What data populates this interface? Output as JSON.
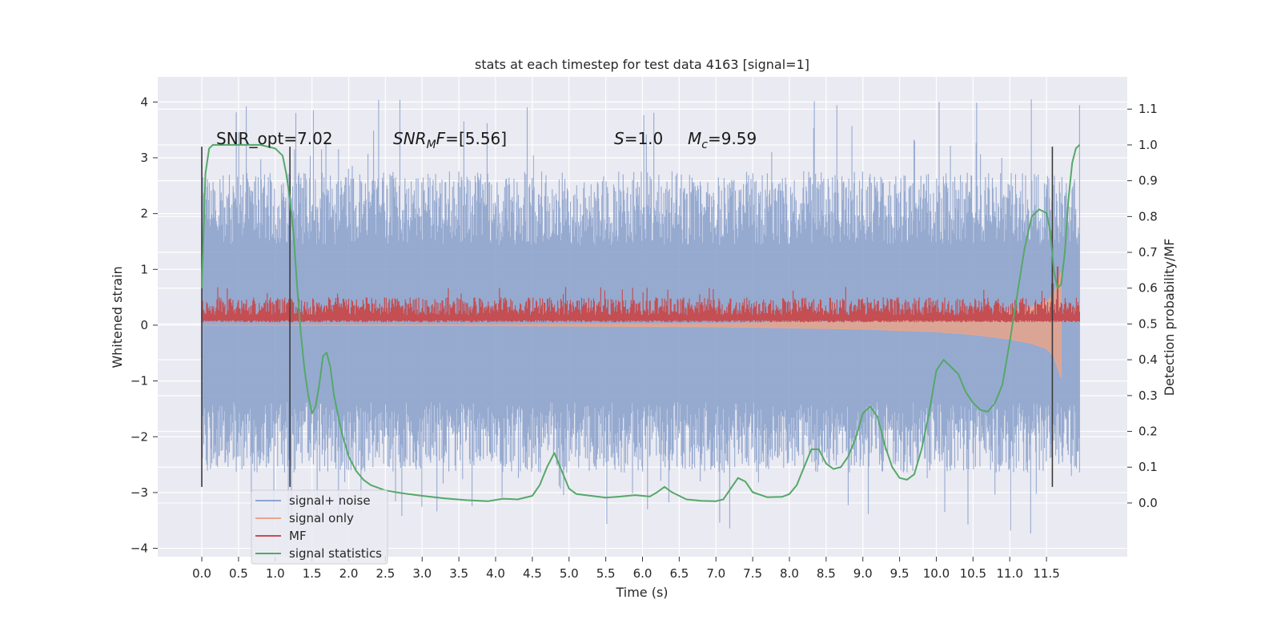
{
  "chart_data": {
    "type": "line",
    "title": "stats at each timestep for test data 4163 [signal=1]",
    "xlabel": "Time (s)",
    "ylabel": "Whitened strain",
    "y2label": "Detection probability/MF",
    "xlim": [
      -0.6,
      12.6
    ],
    "ylim": [
      -4.15,
      4.45
    ],
    "y2lim": [
      -0.15,
      1.19
    ],
    "x_ticks": [
      0.0,
      0.5,
      1.0,
      1.5,
      2.0,
      2.5,
      3.0,
      3.5,
      4.0,
      4.5,
      5.0,
      5.5,
      6.0,
      6.5,
      7.0,
      7.5,
      8.0,
      8.5,
      9.0,
      9.5,
      10.0,
      10.5,
      11.0,
      11.5
    ],
    "x_tick_labels": [
      "0.0",
      "0.5",
      "1.0",
      "1.5",
      "2.0",
      "2.5",
      "3.0",
      "3.5",
      "4.0",
      "4.5",
      "5.0",
      "5.5",
      "6.0",
      "6.5",
      "7.0",
      "7.5",
      "8.0",
      "8.5",
      "9.0",
      "9.5",
      "10.0",
      "10.5",
      "11.0",
      "11.5"
    ],
    "y_ticks": [
      4,
      3,
      2,
      1,
      0,
      -1,
      -2,
      -3,
      -4
    ],
    "y_tick_labels": [
      "4",
      "3",
      "2",
      "1",
      "0",
      "−1",
      "−2",
      "−3",
      "−4"
    ],
    "y2_ticks": [
      1.1,
      1.0,
      0.9,
      0.8,
      0.7,
      0.6,
      0.5,
      0.4,
      0.3,
      0.2,
      0.1,
      0.0
    ],
    "y2_tick_labels": [
      "1.1",
      "1.0",
      "0.9",
      "0.8",
      "0.7",
      "0.6",
      "0.5",
      "0.4",
      "0.3",
      "0.2",
      "0.1",
      "0.0"
    ],
    "grid": true,
    "legend_position": "lower-left",
    "annotations": {
      "snr_opt": "SNR_opt=7.02",
      "snr_mf": "[5.56]",
      "s_value": "=1.0",
      "mc_value": "=9.59"
    },
    "series": [
      {
        "name": "signal+ noise",
        "color": "#8da3cc",
        "axis": "left",
        "x_range": [
          0.0,
          11.95
        ],
        "envelope_upper_typical": 2.4,
        "envelope_lower_typical": -2.3,
        "peak_max": 4.1,
        "peak_min": -3.75
      },
      {
        "name": "signal only",
        "color": "#e8a58c",
        "axis": "left",
        "x": [
          0.0,
          4.0,
          7.0,
          9.0,
          10.0,
          10.5,
          11.0,
          11.3,
          11.5,
          11.6,
          11.7
        ],
        "lower": [
          0.0,
          -0.01,
          -0.03,
          -0.07,
          -0.12,
          -0.17,
          -0.25,
          -0.33,
          -0.42,
          -0.55,
          -0.95
        ],
        "upper": [
          0.0,
          0.01,
          0.03,
          0.07,
          0.12,
          0.17,
          0.25,
          0.33,
          0.42,
          0.55,
          0.95
        ]
      },
      {
        "name": "MF",
        "color": "#c44e52",
        "axis": "left",
        "x_range": [
          0.0,
          11.95
        ],
        "base": 0.05,
        "typical_max": 0.5,
        "peaks": [
          [
            11.65,
            1.05
          ],
          [
            11.58,
            0.75
          ]
        ]
      },
      {
        "name": "signal statistics",
        "color": "#55a868",
        "axis": "right",
        "x": [
          0.0,
          0.05,
          0.1,
          0.15,
          0.2,
          0.3,
          0.5,
          0.8,
          1.0,
          1.1,
          1.15,
          1.2,
          1.25,
          1.3,
          1.35,
          1.4,
          1.45,
          1.5,
          1.55,
          1.6,
          1.65,
          1.7,
          1.75,
          1.8,
          1.9,
          2.0,
          2.1,
          2.2,
          2.3,
          2.5,
          2.7,
          3.0,
          3.3,
          3.6,
          3.9,
          4.1,
          4.3,
          4.5,
          4.6,
          4.7,
          4.8,
          4.9,
          5.0,
          5.1,
          5.3,
          5.5,
          5.7,
          5.9,
          6.1,
          6.2,
          6.3,
          6.4,
          6.6,
          6.8,
          7.0,
          7.1,
          7.2,
          7.3,
          7.4,
          7.5,
          7.7,
          7.9,
          8.0,
          8.1,
          8.2,
          8.3,
          8.4,
          8.5,
          8.6,
          8.7,
          8.8,
          8.9,
          9.0,
          9.1,
          9.2,
          9.3,
          9.4,
          9.5,
          9.6,
          9.7,
          9.8,
          9.9,
          10.0,
          10.1,
          10.2,
          10.3,
          10.4,
          10.5,
          10.6,
          10.7,
          10.8,
          10.9,
          11.0,
          11.1,
          11.2,
          11.3,
          11.4,
          11.5,
          11.55,
          11.6,
          11.65,
          11.7,
          11.75,
          11.8,
          11.85,
          11.9,
          11.95
        ],
        "y": [
          0.6,
          0.92,
          0.99,
          1.0,
          1.0,
          1.0,
          1.0,
          1.0,
          0.99,
          0.97,
          0.92,
          0.85,
          0.75,
          0.6,
          0.47,
          0.37,
          0.3,
          0.25,
          0.27,
          0.33,
          0.41,
          0.42,
          0.38,
          0.3,
          0.2,
          0.13,
          0.09,
          0.065,
          0.05,
          0.035,
          0.028,
          0.02,
          0.013,
          0.008,
          0.005,
          0.012,
          0.01,
          0.02,
          0.05,
          0.1,
          0.14,
          0.09,
          0.04,
          0.025,
          0.02,
          0.015,
          0.018,
          0.022,
          0.018,
          0.03,
          0.045,
          0.03,
          0.01,
          0.006,
          0.005,
          0.01,
          0.04,
          0.07,
          0.06,
          0.03,
          0.016,
          0.017,
          0.025,
          0.05,
          0.1,
          0.15,
          0.15,
          0.11,
          0.095,
          0.1,
          0.13,
          0.18,
          0.25,
          0.27,
          0.24,
          0.16,
          0.1,
          0.07,
          0.065,
          0.08,
          0.15,
          0.25,
          0.37,
          0.4,
          0.38,
          0.36,
          0.31,
          0.28,
          0.26,
          0.255,
          0.28,
          0.33,
          0.45,
          0.58,
          0.71,
          0.8,
          0.82,
          0.81,
          0.76,
          0.65,
          0.6,
          0.61,
          0.7,
          0.85,
          0.95,
          0.99,
          1.0
        ]
      }
    ],
    "vertical_markers": [
      {
        "x": 0.0,
        "y_top": 3.2,
        "y_bottom": -2.9
      },
      {
        "x": 1.2,
        "y_top": 3.2,
        "y_bottom": -2.9
      },
      {
        "x": 11.58,
        "y_top": 3.2,
        "y_bottom": -2.9
      }
    ]
  }
}
